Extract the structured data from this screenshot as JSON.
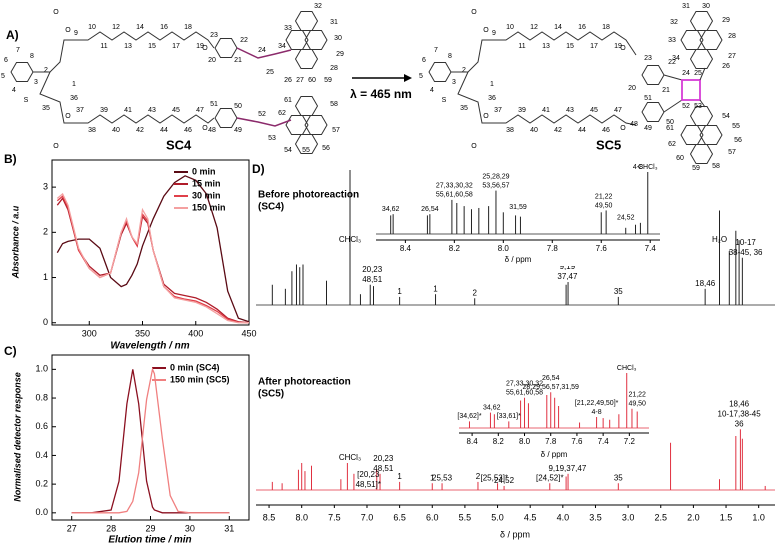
{
  "scheme": {
    "panel_label": "A)",
    "arrow_label": "λ = 465 nm",
    "sc4": {
      "name": "SC4",
      "atoms": [
        "1",
        "2",
        "3",
        "4",
        "5",
        "6",
        "7",
        "8",
        "9",
        "36",
        "35",
        "10",
        "11",
        "12",
        "13",
        "14",
        "15",
        "16",
        "17",
        "18",
        "19",
        "37",
        "38",
        "39",
        "40",
        "41",
        "42",
        "43",
        "44",
        "45",
        "46",
        "47",
        "20",
        "21",
        "22",
        "23",
        "24",
        "25",
        "26",
        "27",
        "60",
        "59",
        "28",
        "29",
        "30",
        "31",
        "32",
        "33",
        "34",
        "48",
        "49",
        "50",
        "51",
        "52",
        "53",
        "61",
        "62",
        "54",
        "55",
        "56",
        "57",
        "58",
        "O",
        "O",
        "O",
        "O",
        "O",
        "O",
        "S"
      ]
    },
    "sc5": {
      "name": "SC5",
      "atoms": [
        "1",
        "2",
        "3",
        "4",
        "5",
        "6",
        "7",
        "8",
        "9",
        "36",
        "35",
        "10",
        "11",
        "12",
        "13",
        "14",
        "15",
        "16",
        "17",
        "18",
        "19",
        "37",
        "38",
        "39",
        "40",
        "41",
        "42",
        "43",
        "44",
        "45",
        "46",
        "47",
        "20",
        "21",
        "22",
        "23",
        "24",
        "25",
        "52",
        "53",
        "26",
        "27",
        "28",
        "29",
        "30",
        "31",
        "32",
        "33",
        "34",
        "48",
        "49",
        "50",
        "51",
        "54",
        "55",
        "56",
        "57",
        "58",
        "59",
        "60",
        "61",
        "62",
        "O",
        "O",
        "O",
        "O",
        "O",
        "O",
        "S"
      ]
    }
  },
  "chart_data": [
    {
      "type": "line",
      "panel_label": "B)",
      "xlabel": "Wavelength / nm",
      "ylabel": "Absorbance / a.u",
      "x": [
        270,
        275,
        280,
        290,
        300,
        310,
        320,
        330,
        335,
        340,
        345,
        350,
        355,
        360,
        370,
        380,
        390,
        400,
        410,
        420,
        430,
        440,
        450
      ],
      "xlim": [
        265,
        450
      ],
      "xticks": [
        300,
        350,
        400,
        450
      ],
      "ylim": [
        -0.05,
        3.6
      ],
      "yticks": [
        0,
        1,
        2,
        3
      ],
      "series": [
        {
          "name": "0 min",
          "color": "#5a0a14",
          "values": [
            1.55,
            1.75,
            1.8,
            1.85,
            1.85,
            1.65,
            1.0,
            0.8,
            0.85,
            1.05,
            1.3,
            1.7,
            2.0,
            2.3,
            2.8,
            3.1,
            3.25,
            3.15,
            2.85,
            2.1,
            0.7,
            0.1,
            0.02
          ]
        },
        {
          "name": "15 min",
          "color": "#b01c2a",
          "values": [
            2.6,
            2.75,
            2.5,
            1.6,
            1.25,
            1.05,
            1.1,
            1.95,
            2.2,
            1.9,
            1.7,
            2.35,
            2.2,
            1.6,
            0.85,
            0.65,
            0.6,
            0.55,
            0.45,
            0.3,
            0.1,
            0.02,
            0.0
          ]
        },
        {
          "name": "30 min",
          "color": "#e0404a",
          "values": [
            2.7,
            2.8,
            2.55,
            1.6,
            1.2,
            1.0,
            1.1,
            2.0,
            2.25,
            1.9,
            1.7,
            2.4,
            2.25,
            1.6,
            0.8,
            0.58,
            0.52,
            0.48,
            0.38,
            0.25,
            0.08,
            0.01,
            0.0
          ]
        },
        {
          "name": "150 min",
          "color": "#f4a0a0",
          "values": [
            2.75,
            2.85,
            2.6,
            1.65,
            1.2,
            1.0,
            1.1,
            2.0,
            2.3,
            1.9,
            1.75,
            2.5,
            2.3,
            1.6,
            0.8,
            0.55,
            0.5,
            0.45,
            0.35,
            0.2,
            0.05,
            0.0,
            0.0
          ]
        }
      ]
    },
    {
      "type": "line",
      "panel_label": "C)",
      "xlabel": "Elution time / min",
      "ylabel": "Normalised detector response",
      "x": [
        27,
        27.5,
        28,
        28.2,
        28.4,
        28.55,
        28.7,
        28.9,
        29.05,
        29.1,
        29.3,
        29.5,
        29.7,
        30,
        31
      ],
      "xlim": [
        26.5,
        31.5
      ],
      "xticks": [
        27,
        28,
        29,
        30,
        31
      ],
      "ylim": [
        -0.05,
        1.1
      ],
      "yticks": [
        {
          "value": 0,
          "label": "0.0"
        },
        0.2,
        0.4,
        0.6,
        0.8,
        {
          "value": 1,
          "label": "1.0"
        }
      ],
      "series": [
        {
          "name": "0 min (SC4)",
          "color": "#8b1020",
          "values": [
            0,
            0,
            0.02,
            0.22,
            0.76,
            1.0,
            0.76,
            0.22,
            0.04,
            0.02,
            0,
            0,
            0,
            0,
            0
          ]
        },
        {
          "name": "150 min (SC5)",
          "color": "#f08080",
          "values": [
            0,
            0,
            0,
            0,
            0.01,
            0.08,
            0.28,
            0.79,
            1.0,
            0.97,
            0.52,
            0.12,
            0.01,
            0,
            0
          ]
        }
      ]
    },
    {
      "type": "spectrum",
      "panel_label": "D)",
      "xlabel": "δ / ppm",
      "xlim": [
        8.7,
        0.75
      ],
      "xticks": [
        8.5,
        {
          "value": 8,
          "label": "8.0"
        },
        7.5,
        {
          "value": 7,
          "label": "7.0"
        },
        6.5,
        {
          "value": 6,
          "label": "6.0"
        },
        5.5,
        {
          "value": 5,
          "label": "5.0"
        },
        4.5,
        {
          "value": 4,
          "label": "4.0"
        },
        3.5,
        {
          "value": 3,
          "label": "3.0"
        },
        2.5,
        {
          "value": 2,
          "label": "2.0"
        },
        1.5,
        {
          "value": 1,
          "label": "1.0"
        }
      ],
      "traces": [
        {
          "title_lines": [
            "Before photoreaction",
            "(SC4)"
          ],
          "color": "#222222",
          "x": [
            8.45,
            8.25,
            8.15,
            8.08,
            8.03,
            7.98,
            7.62,
            7.26,
            7.1,
            6.95,
            6.9,
            6.5,
            5.95,
            5.35,
            3.95,
            3.92,
            3.15,
            1.82,
            1.6,
            1.45,
            1.35,
            1.3,
            1.25
          ],
          "values": [
            15,
            12,
            25,
            30,
            28,
            30,
            18,
            100,
            8,
            15,
            14,
            6,
            8,
            5,
            15,
            17,
            6,
            12,
            70,
            40,
            55,
            48,
            35
          ],
          "annotations": [
            {
              "lines": [
                "CHCl₃"
              ],
              "x": 7.26
            },
            {
              "lines": [
                "20,23",
                "48,51"
              ],
              "x": 6.92
            },
            {
              "lines": [
                "1"
              ],
              "x": 6.5
            },
            {
              "lines": [
                "1"
              ],
              "x": 5.95
            },
            {
              "lines": [
                "2"
              ],
              "x": 5.35
            },
            {
              "lines": [
                "9,19",
                "37,47"
              ],
              "x": 3.93
            },
            {
              "lines": [
                "35"
              ],
              "x": 3.15
            },
            {
              "lines": [
                "18,46"
              ],
              "x": 1.82
            },
            {
              "lines": [
                "H₂O"
              ],
              "x": 1.6
            },
            {
              "lines": [
                "10-17",
                "38-45, 36"
              ],
              "x": 1.2
            }
          ]
        },
        {
          "title_lines": [
            "After photoreaction",
            "(SC5)"
          ],
          "color": "#e03040",
          "x": [
            8.45,
            8.3,
            8.05,
            8.0,
            7.95,
            7.85,
            7.4,
            7.3,
            7.2,
            6.85,
            6.8,
            6.5,
            6.0,
            5.85,
            5.3,
            5.0,
            4.9,
            4.2,
            3.95,
            3.92,
            3.15,
            2.35,
            1.6,
            1.35,
            1.28,
            1.25,
            0.9
          ],
          "values": [
            6,
            5,
            15,
            20,
            14,
            18,
            8,
            20,
            12,
            15,
            12,
            6,
            5,
            5,
            6,
            5,
            3,
            5,
            10,
            12,
            5,
            35,
            8,
            40,
            45,
            38,
            3
          ],
          "annotations": [
            {
              "lines": [
                "CHCl₃"
              ],
              "x": 7.26
            },
            {
              "lines": [
                "[20,23",
                "48,51]*"
              ],
              "x": 6.98
            },
            {
              "lines": [
                "20,23",
                "48,51"
              ],
              "x": 6.75
            },
            {
              "lines": [
                "1"
              ],
              "x": 6.5
            },
            {
              "lines": [
                "1"
              ],
              "x": 6.0
            },
            {
              "lines": [
                "25,53"
              ],
              "x": 5.85,
              "color": "#d63cd6"
            },
            {
              "lines": [
                "2"
              ],
              "x": 5.3
            },
            {
              "lines": [
                "[25,53]*"
              ],
              "x": 5.05,
              "color": "#d63cd6"
            },
            {
              "lines": [
                "24,52"
              ],
              "x": 4.9,
              "color": "#d63cd6"
            },
            {
              "lines": [
                "[24,52]*"
              ],
              "x": 4.2,
              "color": "#d63cd6"
            },
            {
              "lines": [
                "9,19,37,47"
              ],
              "x": 3.93
            },
            {
              "lines": [
                "35"
              ],
              "x": 3.15
            },
            {
              "lines": [
                "18,46",
                "10-17,38-45",
                "36"
              ],
              "x": 1.3
            }
          ]
        }
      ]
    },
    {
      "type": "spectrum",
      "xlabel": "δ / ppm",
      "xlim": [
        8.52,
        7.36
      ],
      "xticks": [
        8.4,
        8.2,
        {
          "value": 8,
          "label": "8.0"
        },
        7.8,
        7.6,
        7.4
      ],
      "traces": [
        {
          "color": "#222222",
          "x": [
            8.46,
            8.45,
            8.31,
            8.3,
            8.21,
            8.19,
            8.16,
            8.13,
            8.1,
            8.06,
            8.03,
            8.0,
            7.95,
            7.93,
            7.6,
            7.58,
            7.5,
            7.46,
            7.44,
            7.41
          ],
          "values": [
            30,
            32,
            30,
            32,
            55,
            50,
            45,
            40,
            42,
            45,
            70,
            35,
            30,
            28,
            35,
            38,
            10,
            15,
            18,
            100
          ],
          "annotations": [
            {
              "lines": [
                "34,62"
              ],
              "x": 8.46
            },
            {
              "lines": [
                "26,54"
              ],
              "x": 8.3
            },
            {
              "lines": [
                "27,33,30,32",
                "55,61,60,58"
              ],
              "x": 8.2
            },
            {
              "lines": [
                "25,28,29",
                "53,56,57"
              ],
              "x": 8.03
            },
            {
              "lines": [
                "31,59"
              ],
              "x": 7.94
            },
            {
              "lines": [
                "21,22",
                "49,50"
              ],
              "x": 7.59
            },
            {
              "lines": [
                "24,52"
              ],
              "x": 7.5,
              "color": "#c0392b"
            },
            {
              "lines": [
                "4-8"
              ],
              "x": 7.45
            },
            {
              "lines": [
                "CHCl₃"
              ],
              "x": 7.41
            }
          ]
        }
      ]
    },
    {
      "type": "spectrum",
      "xlabel": "δ / ppm",
      "xlim": [
        8.5,
        7.05
      ],
      "xticks": [
        8.4,
        8.2,
        {
          "value": 8,
          "label": "8.0"
        },
        7.8,
        7.6,
        7.4,
        7.2
      ],
      "traces": [
        {
          "color": "#e03040",
          "x": [
            8.42,
            8.26,
            8.23,
            8.12,
            8.03,
            8.0,
            7.97,
            7.83,
            7.8,
            7.77,
            7.74,
            7.58,
            7.45,
            7.4,
            7.35,
            7.28,
            7.22,
            7.18,
            7.14
          ],
          "values": [
            12,
            28,
            25,
            12,
            50,
            55,
            45,
            60,
            65,
            55,
            40,
            10,
            20,
            18,
            15,
            25,
            100,
            35,
            30
          ],
          "annotations": [
            {
              "lines": [
                "[34,62]*"
              ],
              "x": 8.42
            },
            {
              "lines": [
                "34,62"
              ],
              "x": 8.25
            },
            {
              "lines": [
                "[33,61]*"
              ],
              "x": 8.12
            },
            {
              "lines": [
                "27,33,30,32",
                "55,61,60,58"
              ],
              "x": 8.0
            },
            {
              "lines": [
                "26,54",
                "28,29,56,57,31,59"
              ],
              "x": 7.8
            },
            {
              "lines": [
                "[21,22,49,50]*",
                "4-8"
              ],
              "x": 7.45
            },
            {
              "lines": [
                "CHCl₃"
              ],
              "x": 7.22
            },
            {
              "lines": [
                "21,22",
                "49,50"
              ],
              "x": 7.14
            }
          ]
        }
      ]
    }
  ]
}
